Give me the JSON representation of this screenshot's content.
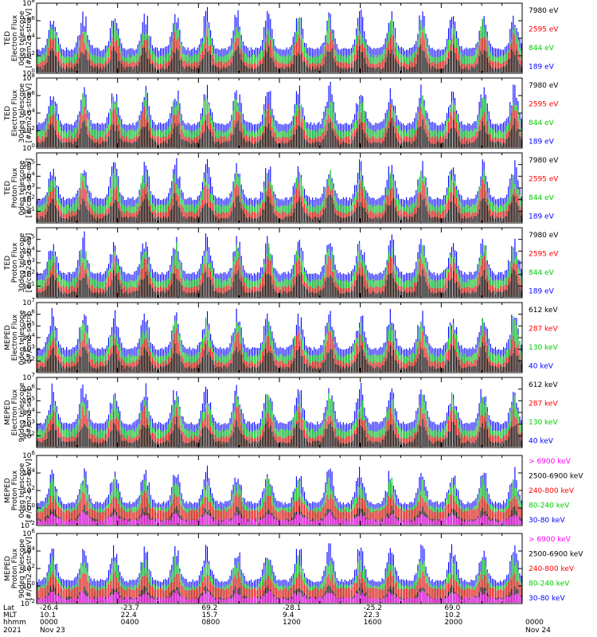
{
  "figure": {
    "footer": {
      "row_labels": [
        "Lat",
        "MLT",
        "hhmm",
        "2021"
      ],
      "columns": [
        {
          "lat": "-26.4",
          "mlt": "10.1",
          "hhmm": "0000",
          "date": "Nov 23"
        },
        {
          "lat": "-23.7",
          "mlt": "22.4",
          "hhmm": "0400",
          "date": ""
        },
        {
          "lat": "69.2",
          "mlt": "15.7",
          "hhmm": "0800",
          "date": ""
        },
        {
          "lat": "-28.1",
          "mlt": "9.4",
          "hhmm": "1200",
          "date": ""
        },
        {
          "lat": "-25.2",
          "mlt": "22.3",
          "hhmm": "1600",
          "date": ""
        },
        {
          "lat": "69.0",
          "mlt": "10.2",
          "hhmm": "2000",
          "date": ""
        },
        {
          "lat": "",
          "mlt": "",
          "hhmm": "0000",
          "date": "Nov 24"
        }
      ]
    }
  },
  "chart_data": [
    {
      "type": "line",
      "ylabel": [
        "TED",
        "Electron Flux",
        "0deg telescope",
        "[#/cm2-s-str-eV]"
      ],
      "ylim": [
        1,
        100000000
      ],
      "yscale": "log",
      "ytick_labels": [
        "10^0",
        "10^2",
        "10^4",
        "10^6",
        "10^8"
      ],
      "series": [
        {
          "name": "7980 eV",
          "color": "#000000"
        },
        {
          "name": "2595 eV",
          "color": "#ff0000"
        },
        {
          "name": "844 eV",
          "color": "#00cc00"
        },
        {
          "name": "189 eV",
          "color": "#0000ff"
        }
      ]
    },
    {
      "type": "line",
      "ylabel": [
        "TED",
        "Electron Flux",
        "30deg telescope",
        "[#/cm2-s-str-eV]"
      ],
      "ylim": [
        1,
        100000000
      ],
      "yscale": "log",
      "ytick_labels": [
        "10^0",
        "10^2",
        "10^4",
        "10^6",
        "10^8"
      ],
      "series": [
        {
          "name": "7980 eV",
          "color": "#000000"
        },
        {
          "name": "2595 eV",
          "color": "#ff0000"
        },
        {
          "name": "844 eV",
          "color": "#00cc00"
        },
        {
          "name": "189 eV",
          "color": "#0000ff"
        }
      ]
    },
    {
      "type": "line",
      "ylabel": [
        "TED",
        "Proton Flux",
        "0deg telescope",
        "[#/cm2-s-str-eV]"
      ],
      "ylim": [
        1,
        1000000
      ],
      "yscale": "log",
      "ytick_labels": [
        "10^1",
        "10^2",
        "10^3",
        "10^4",
        "10^5"
      ],
      "series": [
        {
          "name": "7980 eV",
          "color": "#000000"
        },
        {
          "name": "2595 eV",
          "color": "#ff0000"
        },
        {
          "name": "844 eV",
          "color": "#00cc00"
        },
        {
          "name": "189 eV",
          "color": "#0000ff"
        }
      ]
    },
    {
      "type": "line",
      "ylabel": [
        "TED",
        "Proton Flux",
        "30deg telescope",
        "[#/cm2-s-str-eV]"
      ],
      "ylim": [
        1,
        1000000
      ],
      "yscale": "log",
      "ytick_labels": [
        "10^1",
        "10^2",
        "10^3",
        "10^4",
        "10^5"
      ],
      "series": [
        {
          "name": "7980 eV",
          "color": "#000000"
        },
        {
          "name": "2595 eV",
          "color": "#ff0000"
        },
        {
          "name": "844 eV",
          "color": "#00cc00"
        },
        {
          "name": "189 eV",
          "color": "#0000ff"
        }
      ]
    },
    {
      "type": "line",
      "ylabel": [
        "MEPED",
        "Electron Flux",
        "0deg telescope",
        "[#/cm2-s-str]"
      ],
      "ylim": [
        10,
        10000000
      ],
      "yscale": "log",
      "ytick_labels": [
        "10^2",
        "10^3",
        "10^4",
        "10^5",
        "10^6",
        "10^7"
      ],
      "series": [
        {
          "name": "612 keV",
          "color": "#000000"
        },
        {
          "name": "287 keV",
          "color": "#ff0000"
        },
        {
          "name": "130 keV",
          "color": "#00cc00"
        },
        {
          "name": "40 keV",
          "color": "#0000ff"
        }
      ]
    },
    {
      "type": "line",
      "ylabel": [
        "MEPED",
        "Electron Flux",
        "90deg telescope",
        "[#/cm2-s-str]"
      ],
      "ylim": [
        10,
        10000000
      ],
      "yscale": "log",
      "ytick_labels": [
        "10^2",
        "10^3",
        "10^4",
        "10^5",
        "10^6",
        "10^7"
      ],
      "series": [
        {
          "name": "612 keV",
          "color": "#000000"
        },
        {
          "name": "287 keV",
          "color": "#ff0000"
        },
        {
          "name": "130 keV",
          "color": "#00cc00"
        },
        {
          "name": "40 keV",
          "color": "#0000ff"
        }
      ]
    },
    {
      "type": "line",
      "ylabel": [
        "MEPED",
        "Proton Flux",
        "0deg telescope",
        "[#/cm2-s-str-keV]"
      ],
      "ylim": [
        0.01,
        1000000
      ],
      "yscale": "log",
      "ytick_labels": [
        "10^-2",
        "10^0",
        "10^2",
        "10^4",
        "10^6"
      ],
      "series": [
        {
          "name": "> 6900 keV",
          "color": "#ff00ff"
        },
        {
          "name": "2500-6900 keV",
          "color": "#000000"
        },
        {
          "name": "240-800 keV",
          "color": "#ff0000"
        },
        {
          "name": "80-240 keV",
          "color": "#00cc00"
        },
        {
          "name": "30-80 keV",
          "color": "#0000ff"
        }
      ]
    },
    {
      "type": "line",
      "ylabel": [
        "MEPED",
        "Proton Flux",
        "90deg telescope",
        "[#/cm2-s-str-keV]"
      ],
      "ylim": [
        0.01,
        1000000
      ],
      "yscale": "log",
      "ytick_labels": [
        "10^-2",
        "10^0",
        "10^2",
        "10^4",
        "10^6"
      ],
      "series": [
        {
          "name": "> 6900 keV",
          "color": "#ff00ff"
        },
        {
          "name": "2500-6900 keV",
          "color": "#000000"
        },
        {
          "name": "240-800 keV",
          "color": "#ff0000"
        },
        {
          "name": "80-240 keV",
          "color": "#00cc00"
        },
        {
          "name": "30-80 keV",
          "color": "#0000ff"
        }
      ]
    }
  ]
}
